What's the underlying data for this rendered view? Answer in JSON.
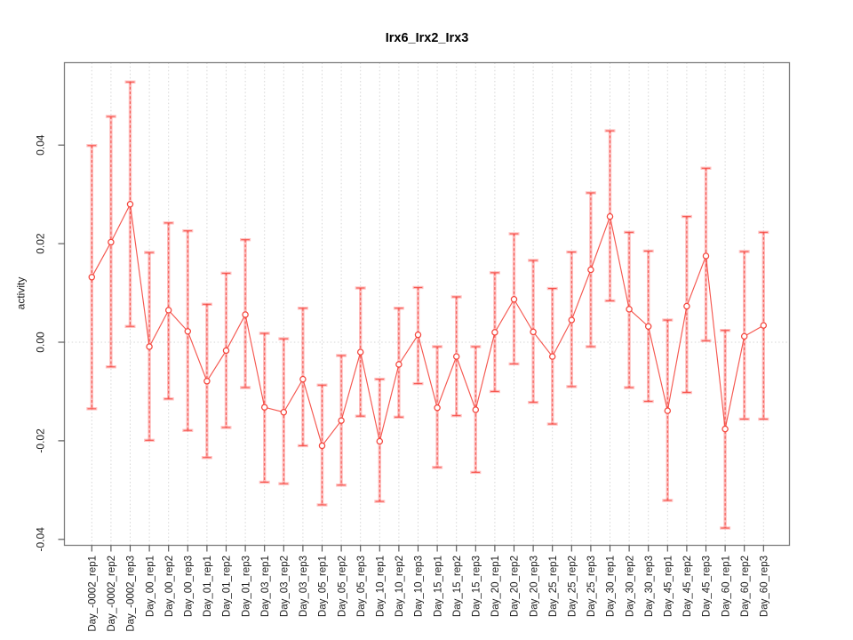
{
  "chart_data": {
    "type": "scatter",
    "title": "Irx6_Irx2_Irx3",
    "xlabel": "",
    "ylabel": "activity",
    "ylim": [
      -0.0412,
      0.0568
    ],
    "yticks": [
      -0.04,
      -0.02,
      0.0,
      0.02,
      0.04
    ],
    "ytick_labels": [
      "-0.04",
      "-0.02",
      "0.00",
      "0.02",
      "0.04"
    ],
    "grid": "vertical dotted gridline at every category, dotted horizontal line at y=0",
    "legend_position": "none",
    "marker": "open-circle",
    "line_between_points": true,
    "error_bars": true,
    "point_color": "#f4453c",
    "errorbar_band_color": "rgba(255,90,90,0.38)",
    "grid_color": "#d6d6d6",
    "axis_color": "#7d7d7d",
    "categories": [
      "Day_-0002_rep1",
      "Day_-0002_rep2",
      "Day_-0002_rep3",
      "Day_00_rep1",
      "Day_00_rep2",
      "Day_00_rep3",
      "Day_01_rep1",
      "Day_01_rep2",
      "Day_01_rep3",
      "Day_03_rep1",
      "Day_03_rep2",
      "Day_03_rep3",
      "Day_05_rep1",
      "Day_05_rep2",
      "Day_05_rep3",
      "Day_10_rep1",
      "Day_10_rep2",
      "Day_10_rep3",
      "Day_15_rep1",
      "Day_15_rep2",
      "Day_15_rep3",
      "Day_20_rep1",
      "Day_20_rep2",
      "Day_20_rep3",
      "Day_25_rep1",
      "Day_25_rep2",
      "Day_25_rep3",
      "Day_30_rep1",
      "Day_30_rep2",
      "Day_30_rep3",
      "Day_45_rep1",
      "Day_45_rep2",
      "Day_45_rep3",
      "Day_60_rep1",
      "Day_60_rep2",
      "Day_60_rep3"
    ],
    "series": [
      {
        "name": "activity",
        "values": [
          0.0132,
          0.0203,
          0.028,
          -0.0009,
          0.0065,
          0.0022,
          -0.0079,
          -0.0017,
          0.0056,
          -0.0132,
          -0.0142,
          -0.0075,
          -0.021,
          -0.0159,
          -0.002,
          -0.0201,
          -0.0045,
          0.0015,
          -0.0133,
          -0.0029,
          -0.0137,
          0.002,
          0.0087,
          0.0021,
          -0.0029,
          0.0045,
          0.0147,
          0.0255,
          0.0067,
          0.0032,
          -0.0139,
          0.0073,
          0.0175,
          -0.0176,
          0.0012,
          0.0034
        ],
        "err_lo": [
          -0.0135,
          -0.005,
          0.0032,
          -0.0199,
          -0.0115,
          -0.0179,
          -0.0234,
          -0.0173,
          -0.0092,
          -0.0284,
          -0.0287,
          -0.021,
          -0.033,
          -0.029,
          -0.015,
          -0.0323,
          -0.0152,
          -0.0084,
          -0.0254,
          -0.0149,
          -0.0264,
          -0.01,
          -0.0044,
          -0.0122,
          -0.0166,
          -0.009,
          -0.0009,
          0.0084,
          -0.0092,
          -0.012,
          -0.0321,
          -0.0102,
          0.0003,
          -0.0377,
          -0.0156,
          -0.0156
        ],
        "err_hi": [
          0.0399,
          0.0458,
          0.0528,
          0.0182,
          0.0242,
          0.0226,
          0.0077,
          0.014,
          0.0208,
          0.0018,
          0.0007,
          0.0069,
          -0.0087,
          -0.0027,
          0.011,
          -0.0075,
          0.0069,
          0.0111,
          -0.0009,
          0.0092,
          -0.0009,
          0.0141,
          0.022,
          0.0166,
          0.0109,
          0.0183,
          0.0303,
          0.0429,
          0.0223,
          0.0185,
          0.0045,
          0.0255,
          0.0353,
          0.0024,
          0.0184,
          0.0223
        ]
      }
    ]
  }
}
